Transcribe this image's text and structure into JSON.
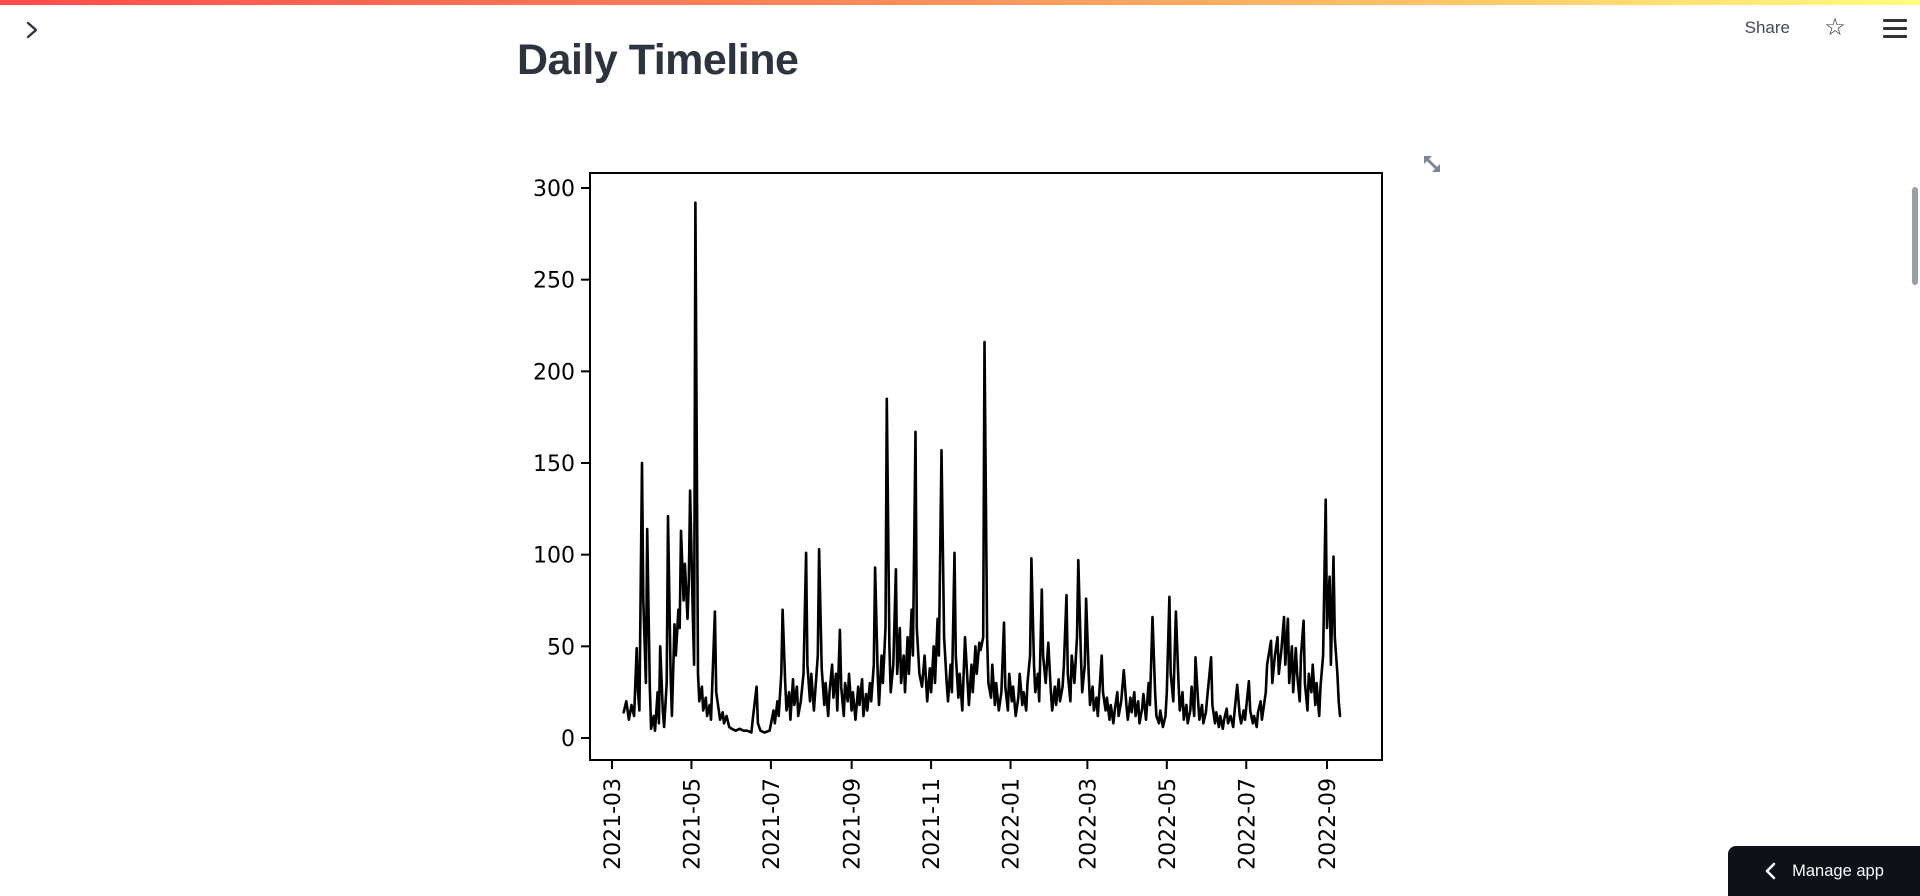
{
  "page": {
    "title": "Daily Timeline"
  },
  "header": {
    "share_label": "Share",
    "icons": {
      "sidebar_expand": "chevron-right",
      "favorite": "star-outline",
      "menu": "hamburger"
    }
  },
  "footer": {
    "manage_app_label": "Manage app",
    "manage_icon": "chevron-left"
  },
  "colors": {
    "decoration_start": "#ff4b4b",
    "decoration_mid": "#fb8a5a",
    "decoration_end": "#fffd80",
    "text": "#31333f",
    "manage_app_bg": "#0e1117",
    "chart_line": "#000000",
    "fullscreen_icon": "#7d8493",
    "scrollbar": "#9aa0ab"
  },
  "chart_data": {
    "type": "line",
    "title": "",
    "xlabel": "",
    "ylabel": "",
    "grid": false,
    "legend": "none",
    "line_color": "#000000",
    "x_start_date": "2021-03-10",
    "x_unit": "days_since_start",
    "ylim": [
      -12,
      308
    ],
    "y_ticks": [
      0,
      50,
      100,
      150,
      200,
      250,
      300
    ],
    "x_tick_labels": [
      "2021-03",
      "2021-05",
      "2021-07",
      "2021-09",
      "2021-11",
      "2022-01",
      "2022-03",
      "2022-05",
      "2022-07",
      "2022-09"
    ],
    "x_tick_day_offsets": [
      -9,
      52,
      113,
      175,
      236,
      297,
      356,
      417,
      478,
      540
    ],
    "points_format": "[days_since_start, value]",
    "points": [
      [
        0,
        14
      ],
      [
        2,
        20
      ],
      [
        4,
        10
      ],
      [
        6,
        18
      ],
      [
        8,
        12
      ],
      [
        10,
        49
      ],
      [
        11,
        25
      ],
      [
        12,
        15
      ],
      [
        14,
        150
      ],
      [
        15,
        75
      ],
      [
        17,
        30
      ],
      [
        18,
        114
      ],
      [
        20,
        28
      ],
      [
        21,
        5
      ],
      [
        23,
        12
      ],
      [
        24,
        4
      ],
      [
        26,
        25
      ],
      [
        27,
        8
      ],
      [
        28,
        50
      ],
      [
        30,
        15
      ],
      [
        31,
        6
      ],
      [
        33,
        30
      ],
      [
        34,
        121
      ],
      [
        36,
        35
      ],
      [
        37,
        12
      ],
      [
        39,
        62
      ],
      [
        40,
        45
      ],
      [
        42,
        70
      ],
      [
        43,
        60
      ],
      [
        44,
        113
      ],
      [
        46,
        75
      ],
      [
        47,
        95
      ],
      [
        49,
        65
      ],
      [
        50,
        85
      ],
      [
        51,
        135
      ],
      [
        53,
        70
      ],
      [
        54,
        40
      ],
      [
        55,
        292
      ],
      [
        57,
        35
      ],
      [
        58,
        20
      ],
      [
        60,
        28
      ],
      [
        61,
        15
      ],
      [
        63,
        22
      ],
      [
        64,
        12
      ],
      [
        66,
        18
      ],
      [
        67,
        10
      ],
      [
        70,
        69
      ],
      [
        71,
        25
      ],
      [
        73,
        15
      ],
      [
        74,
        10
      ],
      [
        76,
        14
      ],
      [
        77,
        8
      ],
      [
        79,
        12
      ],
      [
        81,
        6
      ],
      [
        83,
        5
      ],
      [
        86,
        4
      ],
      [
        89,
        5
      ],
      [
        92,
        4
      ],
      [
        95,
        4
      ],
      [
        98,
        3
      ],
      [
        99,
        10
      ],
      [
        102,
        28
      ],
      [
        103,
        8
      ],
      [
        105,
        4
      ],
      [
        108,
        3
      ],
      [
        112,
        4
      ],
      [
        115,
        15
      ],
      [
        116,
        8
      ],
      [
        118,
        20
      ],
      [
        119,
        12
      ],
      [
        121,
        35
      ],
      [
        122,
        70
      ],
      [
        124,
        30
      ],
      [
        125,
        15
      ],
      [
        127,
        25
      ],
      [
        128,
        10
      ],
      [
        130,
        32
      ],
      [
        131,
        18
      ],
      [
        133,
        28
      ],
      [
        134,
        12
      ],
      [
        136,
        20
      ],
      [
        138,
        35
      ],
      [
        140,
        101
      ],
      [
        141,
        40
      ],
      [
        143,
        20
      ],
      [
        144,
        35
      ],
      [
        146,
        15
      ],
      [
        147,
        25
      ],
      [
        149,
        45
      ],
      [
        150,
        103
      ],
      [
        152,
        38
      ],
      [
        154,
        18
      ],
      [
        155,
        30
      ],
      [
        157,
        12
      ],
      [
        158,
        25
      ],
      [
        160,
        40
      ],
      [
        161,
        22
      ],
      [
        163,
        35
      ],
      [
        164,
        15
      ],
      [
        166,
        59
      ],
      [
        167,
        28
      ],
      [
        169,
        12
      ],
      [
        170,
        30
      ],
      [
        172,
        20
      ],
      [
        173,
        35
      ],
      [
        175,
        15
      ],
      [
        176,
        25
      ],
      [
        178,
        10
      ],
      [
        180,
        28
      ],
      [
        181,
        18
      ],
      [
        183,
        32
      ],
      [
        184,
        12
      ],
      [
        186,
        24
      ],
      [
        187,
        15
      ],
      [
        189,
        30
      ],
      [
        190,
        20
      ],
      [
        192,
        40
      ],
      [
        193,
        93
      ],
      [
        195,
        35
      ],
      [
        196,
        18
      ],
      [
        198,
        45
      ],
      [
        199,
        30
      ],
      [
        201,
        60
      ],
      [
        202,
        185
      ],
      [
        204,
        50
      ],
      [
        205,
        25
      ],
      [
        207,
        40
      ],
      [
        209,
        92
      ],
      [
        210,
        35
      ],
      [
        212,
        60
      ],
      [
        213,
        30
      ],
      [
        215,
        45
      ],
      [
        216,
        25
      ],
      [
        218,
        55
      ],
      [
        219,
        35
      ],
      [
        221,
        70
      ],
      [
        222,
        45
      ],
      [
        224,
        167
      ],
      [
        225,
        60
      ],
      [
        227,
        35
      ],
      [
        229,
        28
      ],
      [
        231,
        45
      ],
      [
        233,
        20
      ],
      [
        235,
        38
      ],
      [
        236,
        25
      ],
      [
        238,
        50
      ],
      [
        239,
        30
      ],
      [
        241,
        65
      ],
      [
        242,
        45
      ],
      [
        244,
        157
      ],
      [
        246,
        55
      ],
      [
        248,
        30
      ],
      [
        249,
        20
      ],
      [
        251,
        40
      ],
      [
        252,
        25
      ],
      [
        254,
        101
      ],
      [
        255,
        45
      ],
      [
        257,
        22
      ],
      [
        258,
        35
      ],
      [
        260,
        15
      ],
      [
        262,
        55
      ],
      [
        264,
        30
      ],
      [
        265,
        18
      ],
      [
        267,
        40
      ],
      [
        268,
        25
      ],
      [
        270,
        50
      ],
      [
        271,
        35
      ],
      [
        273,
        52
      ],
      [
        274,
        48
      ],
      [
        276,
        55
      ],
      [
        277,
        216
      ],
      [
        279,
        55
      ],
      [
        280,
        30
      ],
      [
        282,
        22
      ],
      [
        283,
        40
      ],
      [
        285,
        18
      ],
      [
        286,
        30
      ],
      [
        288,
        15
      ],
      [
        290,
        25
      ],
      [
        292,
        63
      ],
      [
        293,
        28
      ],
      [
        295,
        15
      ],
      [
        296,
        35
      ],
      [
        298,
        20
      ],
      [
        299,
        28
      ],
      [
        301,
        12
      ],
      [
        303,
        22
      ],
      [
        304,
        35
      ],
      [
        306,
        18
      ],
      [
        307,
        25
      ],
      [
        309,
        15
      ],
      [
        310,
        30
      ],
      [
        312,
        45
      ],
      [
        313,
        98
      ],
      [
        315,
        40
      ],
      [
        316,
        25
      ],
      [
        318,
        35
      ],
      [
        319,
        20
      ],
      [
        321,
        81
      ],
      [
        322,
        45
      ],
      [
        324,
        30
      ],
      [
        326,
        52
      ],
      [
        328,
        25
      ],
      [
        329,
        15
      ],
      [
        331,
        28
      ],
      [
        332,
        18
      ],
      [
        334,
        32
      ],
      [
        335,
        20
      ],
      [
        337,
        28
      ],
      [
        338,
        40
      ],
      [
        340,
        78
      ],
      [
        341,
        35
      ],
      [
        343,
        20
      ],
      [
        344,
        45
      ],
      [
        346,
        30
      ],
      [
        348,
        55
      ],
      [
        349,
        97
      ],
      [
        351,
        45
      ],
      [
        352,
        25
      ],
      [
        354,
        40
      ],
      [
        355,
        76
      ],
      [
        357,
        35
      ],
      [
        358,
        18
      ],
      [
        360,
        28
      ],
      [
        361,
        15
      ],
      [
        363,
        22
      ],
      [
        364,
        12
      ],
      [
        367,
        45
      ],
      [
        368,
        25
      ],
      [
        370,
        15
      ],
      [
        371,
        22
      ],
      [
        373,
        10
      ],
      [
        374,
        18
      ],
      [
        376,
        8
      ],
      [
        377,
        15
      ],
      [
        379,
        25
      ],
      [
        380,
        12
      ],
      [
        382,
        20
      ],
      [
        384,
        37
      ],
      [
        386,
        18
      ],
      [
        387,
        10
      ],
      [
        389,
        22
      ],
      [
        390,
        14
      ],
      [
        392,
        25
      ],
      [
        393,
        12
      ],
      [
        395,
        20
      ],
      [
        396,
        8
      ],
      [
        398,
        16
      ],
      [
        399,
        24
      ],
      [
        401,
        10
      ],
      [
        403,
        30
      ],
      [
        404,
        18
      ],
      [
        406,
        66
      ],
      [
        408,
        25
      ],
      [
        409,
        12
      ],
      [
        411,
        8
      ],
      [
        412,
        15
      ],
      [
        414,
        6
      ],
      [
        416,
        12
      ],
      [
        417,
        25
      ],
      [
        419,
        77
      ],
      [
        420,
        35
      ],
      [
        422,
        20
      ],
      [
        424,
        69
      ],
      [
        426,
        30
      ],
      [
        427,
        15
      ],
      [
        429,
        25
      ],
      [
        430,
        10
      ],
      [
        432,
        18
      ],
      [
        433,
        8
      ],
      [
        435,
        15
      ],
      [
        436,
        28
      ],
      [
        438,
        12
      ],
      [
        439,
        44
      ],
      [
        441,
        20
      ],
      [
        442,
        10
      ],
      [
        444,
        18
      ],
      [
        445,
        8
      ],
      [
        447,
        14
      ],
      [
        448,
        22
      ],
      [
        451,
        44
      ],
      [
        452,
        18
      ],
      [
        454,
        8
      ],
      [
        455,
        14
      ],
      [
        457,
        6
      ],
      [
        458,
        12
      ],
      [
        460,
        5
      ],
      [
        461,
        10
      ],
      [
        463,
        16
      ],
      [
        464,
        8
      ],
      [
        466,
        12
      ],
      [
        468,
        6
      ],
      [
        469,
        14
      ],
      [
        471,
        29
      ],
      [
        473,
        12
      ],
      [
        474,
        8
      ],
      [
        476,
        15
      ],
      [
        477,
        10
      ],
      [
        480,
        31
      ],
      [
        481,
        15
      ],
      [
        483,
        8
      ],
      [
        484,
        12
      ],
      [
        486,
        6
      ],
      [
        487,
        14
      ],
      [
        489,
        20
      ],
      [
        490,
        10
      ],
      [
        493,
        25
      ],
      [
        494,
        40
      ],
      [
        497,
        53
      ],
      [
        498,
        30
      ],
      [
        500,
        45
      ],
      [
        502,
        55
      ],
      [
        503,
        35
      ],
      [
        505,
        48
      ],
      [
        507,
        66
      ],
      [
        508,
        40
      ],
      [
        510,
        65
      ],
      [
        511,
        30
      ],
      [
        513,
        50
      ],
      [
        514,
        25
      ],
      [
        516,
        49
      ],
      [
        517,
        35
      ],
      [
        519,
        20
      ],
      [
        520,
        45
      ],
      [
        522,
        64
      ],
      [
        523,
        30
      ],
      [
        525,
        15
      ],
      [
        526,
        35
      ],
      [
        528,
        25
      ],
      [
        529,
        40
      ],
      [
        531,
        18
      ],
      [
        532,
        30
      ],
      [
        534,
        12
      ],
      [
        535,
        28
      ],
      [
        537,
        45
      ],
      [
        539,
        130
      ],
      [
        540,
        60
      ],
      [
        542,
        88
      ],
      [
        543,
        40
      ],
      [
        545,
        99
      ],
      [
        546,
        55
      ],
      [
        548,
        35
      ],
      [
        549,
        20
      ],
      [
        550,
        12
      ]
    ]
  }
}
